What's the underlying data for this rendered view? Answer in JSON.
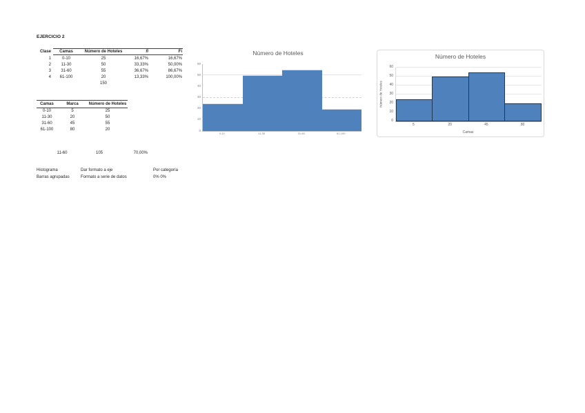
{
  "page": {
    "title": "EJERCICIO 2"
  },
  "table1": {
    "headers": [
      "Clase",
      "Camas",
      "Número de Hoteles",
      "fi",
      "Fi"
    ],
    "rows": [
      [
        "1",
        "0-10",
        "25",
        "16,67%",
        "16,67%"
      ],
      [
        "2",
        "11-30",
        "50",
        "33,33%",
        "50,00%"
      ],
      [
        "3",
        "31-60",
        "55",
        "36,67%",
        "86,67%"
      ],
      [
        "4",
        "61-100",
        "20",
        "13,33%",
        "100,00%"
      ]
    ],
    "total": "150"
  },
  "table2": {
    "headers": [
      "Camas",
      "Marca",
      "Número de Hoteles"
    ],
    "rows": [
      [
        "0-10",
        "5",
        "25"
      ],
      [
        "11-30",
        "20",
        "50"
      ],
      [
        "31-60",
        "45",
        "55"
      ],
      [
        "61-100",
        "80",
        "20"
      ]
    ]
  },
  "summary_row": {
    "range": "11-60",
    "count": "105",
    "percent": "70,00%"
  },
  "notes": {
    "rows": [
      [
        "Histograma",
        "Dar formato a eje",
        "Por categoría"
      ],
      [
        "Barras agrupadas",
        "Formato a serie de datos",
        "0% 0%"
      ]
    ]
  },
  "chart_data": [
    {
      "type": "bar",
      "subtype": "histogram",
      "title": "Número de Hoteles",
      "categories": [
        "0-10",
        "11-30",
        "31-60",
        "61-100"
      ],
      "values": [
        25,
        50,
        55,
        20
      ],
      "xlabel": "",
      "ylabel": "",
      "ylim": [
        0,
        60
      ],
      "ytick_step": 10,
      "gridlines": [
        {
          "v": 50,
          "style": "solid"
        },
        {
          "v": 30,
          "style": "dashed"
        }
      ],
      "bar_color": "#4f81bd",
      "bar_border": "none",
      "legend": "none",
      "frame": "none"
    },
    {
      "type": "bar",
      "subtype": "histogram",
      "title": "Número de Hoteles",
      "categories": [
        "5",
        "20",
        "45",
        "80"
      ],
      "values": [
        25,
        50,
        55,
        20
      ],
      "xlabel": "Camas",
      "ylabel": "Número de Hoteles",
      "ylim": [
        0,
        60
      ],
      "ytick_step": 10,
      "gridlines": [
        {
          "v": 10
        },
        {
          "v": 20
        },
        {
          "v": 30
        },
        {
          "v": 40
        },
        {
          "v": 50
        },
        {
          "v": 60
        }
      ],
      "bar_color": "#4f81bd",
      "bar_border": "#24364f",
      "legend": "none",
      "frame": "rounded-light-gray"
    }
  ]
}
